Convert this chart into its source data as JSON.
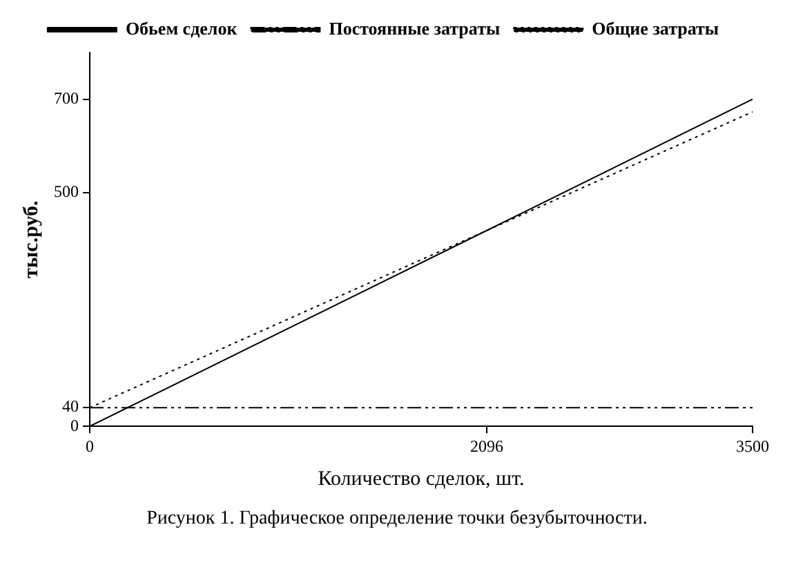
{
  "chart_data": {
    "type": "line",
    "xlabel": "Количество сделок, шт.",
    "ylabel": "тыс.руб.",
    "annotations": [
      "Рисунок 1. Графическое определение точки безубыточности."
    ],
    "x": [
      0,
      2096,
      3500
    ],
    "series": [
      {
        "name": "Обьем сделок",
        "color": "#000000",
        "line_style": "solid",
        "values": [
          0,
          419,
          700
        ]
      },
      {
        "name": "Постоянные затраты",
        "color": "#000000",
        "line_style": "dashed",
        "values": [
          40,
          40,
          40
        ]
      },
      {
        "name": "Общие затраты",
        "color": "#000000",
        "line_style": "dotted",
        "values": [
          40,
          419,
          673
        ]
      }
    ],
    "xlim": [
      0,
      3500
    ],
    "xticks": [
      0,
      2096,
      3500
    ],
    "ylim": [
      0,
      800
    ],
    "yticks": [
      0,
      40,
      500,
      700
    ],
    "grid": false,
    "legend": "top",
    "marker": "none"
  }
}
